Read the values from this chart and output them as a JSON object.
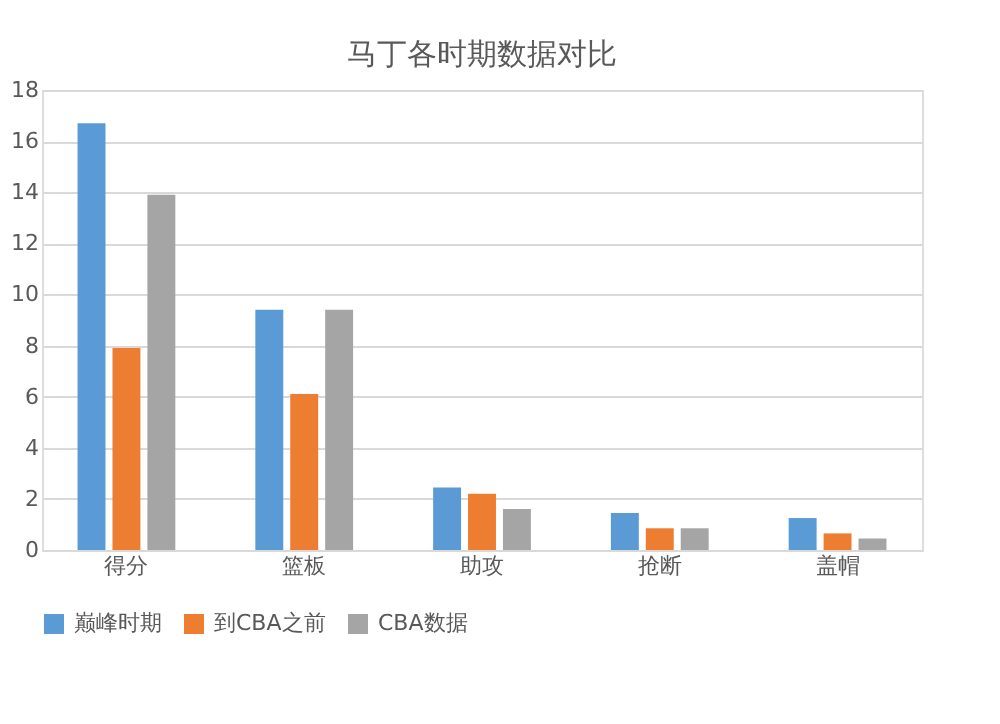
{
  "chart_data": {
    "type": "bar",
    "title": "马丁各时期数据对比",
    "categories": [
      "得分",
      "篮板",
      "助攻",
      "抢断",
      "盖帽"
    ],
    "series": [
      {
        "name": "巅峰时期",
        "color": "#5b9bd5",
        "values": [
          16.7,
          9.4,
          2.45,
          1.45,
          1.25
        ]
      },
      {
        "name": "到CBA之前",
        "color": "#ed7d31",
        "values": [
          7.9,
          6.1,
          2.2,
          0.85,
          0.65
        ]
      },
      {
        "name": "CBA数据",
        "color": "#a5a5a5",
        "values": [
          13.9,
          9.4,
          1.6,
          0.85,
          0.45
        ]
      }
    ],
    "ylim": [
      0,
      18
    ],
    "yticks": [
      0,
      2,
      4,
      6,
      8,
      10,
      12,
      14,
      16,
      18
    ],
    "grid": "y",
    "legend": "bottom"
  }
}
